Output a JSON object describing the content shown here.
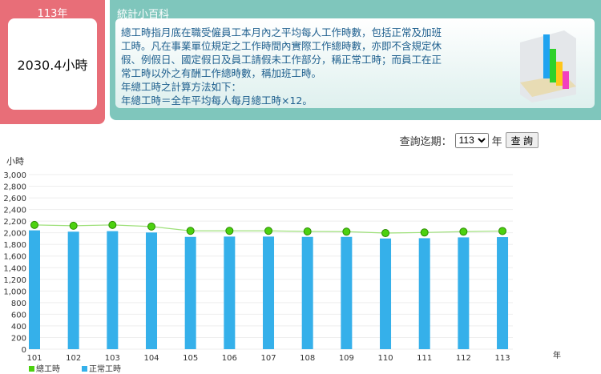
{
  "summary": {
    "year": "113年",
    "value": "2030.4小時"
  },
  "wiki": {
    "title": "統計小百科",
    "text": "總工時指月底在職受僱員工本月內之平均每人工作時數，包括正常及加班工時。凡在事業單位規定之工作時間內實際工作總時數，亦即不含規定休假、例假日、國定假日及員工請假未工作部分，稱正常工時；而員工在正常工時以外之有酬工作總時數，稱加班工時。",
    "formula_title": "年總工時之計算方法如下：",
    "formula": "年總工時＝全年平均每人每月總工時×12。"
  },
  "query": {
    "label": "查詢迄期：",
    "selected": "113",
    "unit": "年",
    "button": "查 詢"
  },
  "chart_data": {
    "type": "bar+line",
    "ylabel": "小時",
    "xlabel": "年",
    "ylim": [
      0,
      3000
    ],
    "yticks": [
      "0",
      "200",
      "400",
      "600",
      "800",
      "1,000",
      "1,200",
      "1,400",
      "1,600",
      "1,800",
      "2,000",
      "2,200",
      "2,400",
      "2,600",
      "2,800",
      "3,000"
    ],
    "categories": [
      "101",
      "102",
      "103",
      "104",
      "105",
      "106",
      "107",
      "108",
      "109",
      "110",
      "111",
      "112",
      "113"
    ],
    "series": [
      {
        "name": "總工時",
        "type": "line",
        "color": "#4cd10f",
        "values": [
          2135,
          2121,
          2135,
          2107,
          2033,
          2033,
          2033,
          2023,
          2019,
          1995,
          2005,
          2019,
          2030.4
        ]
      },
      {
        "name": "正常工時",
        "type": "bar",
        "color": "#35b0ea",
        "values": [
          2042,
          2019,
          2028,
          2005,
          1930,
          1935,
          1935,
          1930,
          1930,
          1902,
          1907,
          1921,
          1926
        ]
      }
    ]
  }
}
